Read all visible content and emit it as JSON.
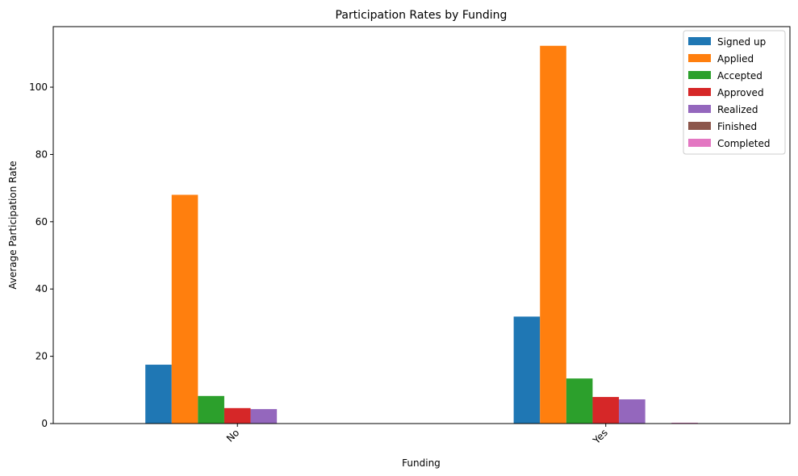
{
  "chart_data": {
    "type": "bar",
    "title": "Participation Rates by Funding",
    "xlabel": "Funding",
    "ylabel": "Average Participation Rate",
    "categories": [
      "No",
      "Yes"
    ],
    "ylim": [
      0,
      118
    ],
    "yticks": [
      0,
      20,
      40,
      60,
      80,
      100
    ],
    "grid": false,
    "legend_position": "top-right",
    "series": [
      {
        "name": "Signed up",
        "color": "#1f77b4",
        "values": [
          17.5,
          31.8
        ]
      },
      {
        "name": "Applied",
        "color": "#ff7f0e",
        "values": [
          68.0,
          112.3
        ]
      },
      {
        "name": "Accepted",
        "color": "#2ca02c",
        "values": [
          8.2,
          13.4
        ]
      },
      {
        "name": "Approved",
        "color": "#d62728",
        "values": [
          4.6,
          7.9
        ]
      },
      {
        "name": "Realized",
        "color": "#9467bd",
        "values": [
          4.3,
          7.2
        ]
      },
      {
        "name": "Finished",
        "color": "#8c564b",
        "values": [
          0.0,
          0.0
        ]
      },
      {
        "name": "Completed",
        "color": "#e377c2",
        "values": [
          0.0,
          0.25
        ]
      }
    ]
  }
}
